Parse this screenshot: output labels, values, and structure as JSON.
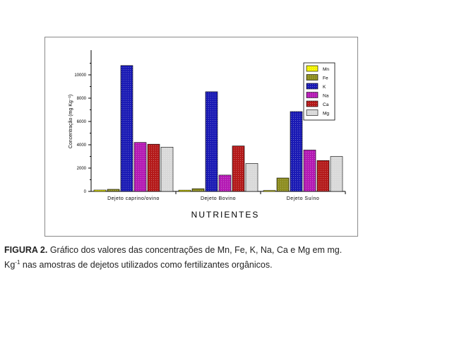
{
  "chart_data": {
    "type": "bar",
    "categories": [
      "Dejeto caprino/ovino",
      "Dejeto Bovino",
      "Dejeto Suíno"
    ],
    "series": [
      {
        "name": "Mn",
        "color": "#f2f200",
        "values": [
          120,
          110,
          80
        ]
      },
      {
        "name": "Fe",
        "color": "#8c8c1e",
        "values": [
          180,
          230,
          1150
        ]
      },
      {
        "name": "K",
        "color": "#1a1ab4",
        "values": [
          10800,
          8550,
          6850
        ]
      },
      {
        "name": "Na",
        "color": "#b41ab4",
        "values": [
          4200,
          1400,
          3550
        ]
      },
      {
        "name": "Ca",
        "color": "#b41a1a",
        "values": [
          4050,
          3900,
          2650
        ]
      },
      {
        "name": "Mg",
        "color": "#d9d9d9",
        "values": [
          3800,
          2400,
          3000
        ]
      }
    ],
    "ylabel": "Concentração (mg Kg⁻¹)",
    "xlabel": "NUTRIENTES",
    "ylim": [
      0,
      12000
    ],
    "yticks": [
      0,
      2000,
      4000,
      6000,
      8000,
      10000
    ],
    "ytick_labels": [
      "0",
      "2000",
      "4000",
      "6000",
      "8000",
      "10000"
    ],
    "legend_position": "top-right",
    "grid": false
  },
  "caption": {
    "label": "FIGURA 2.",
    "text_line1": " Gráfico dos valores das concentrações de Mn, Fe, K, Na, Ca e Mg em mg.",
    "text_line2_pre": "Kg",
    "text_line2_sup": "-1",
    "text_line2_post": " nas amostras de dejetos utilizados como fertilizantes orgânicos."
  }
}
